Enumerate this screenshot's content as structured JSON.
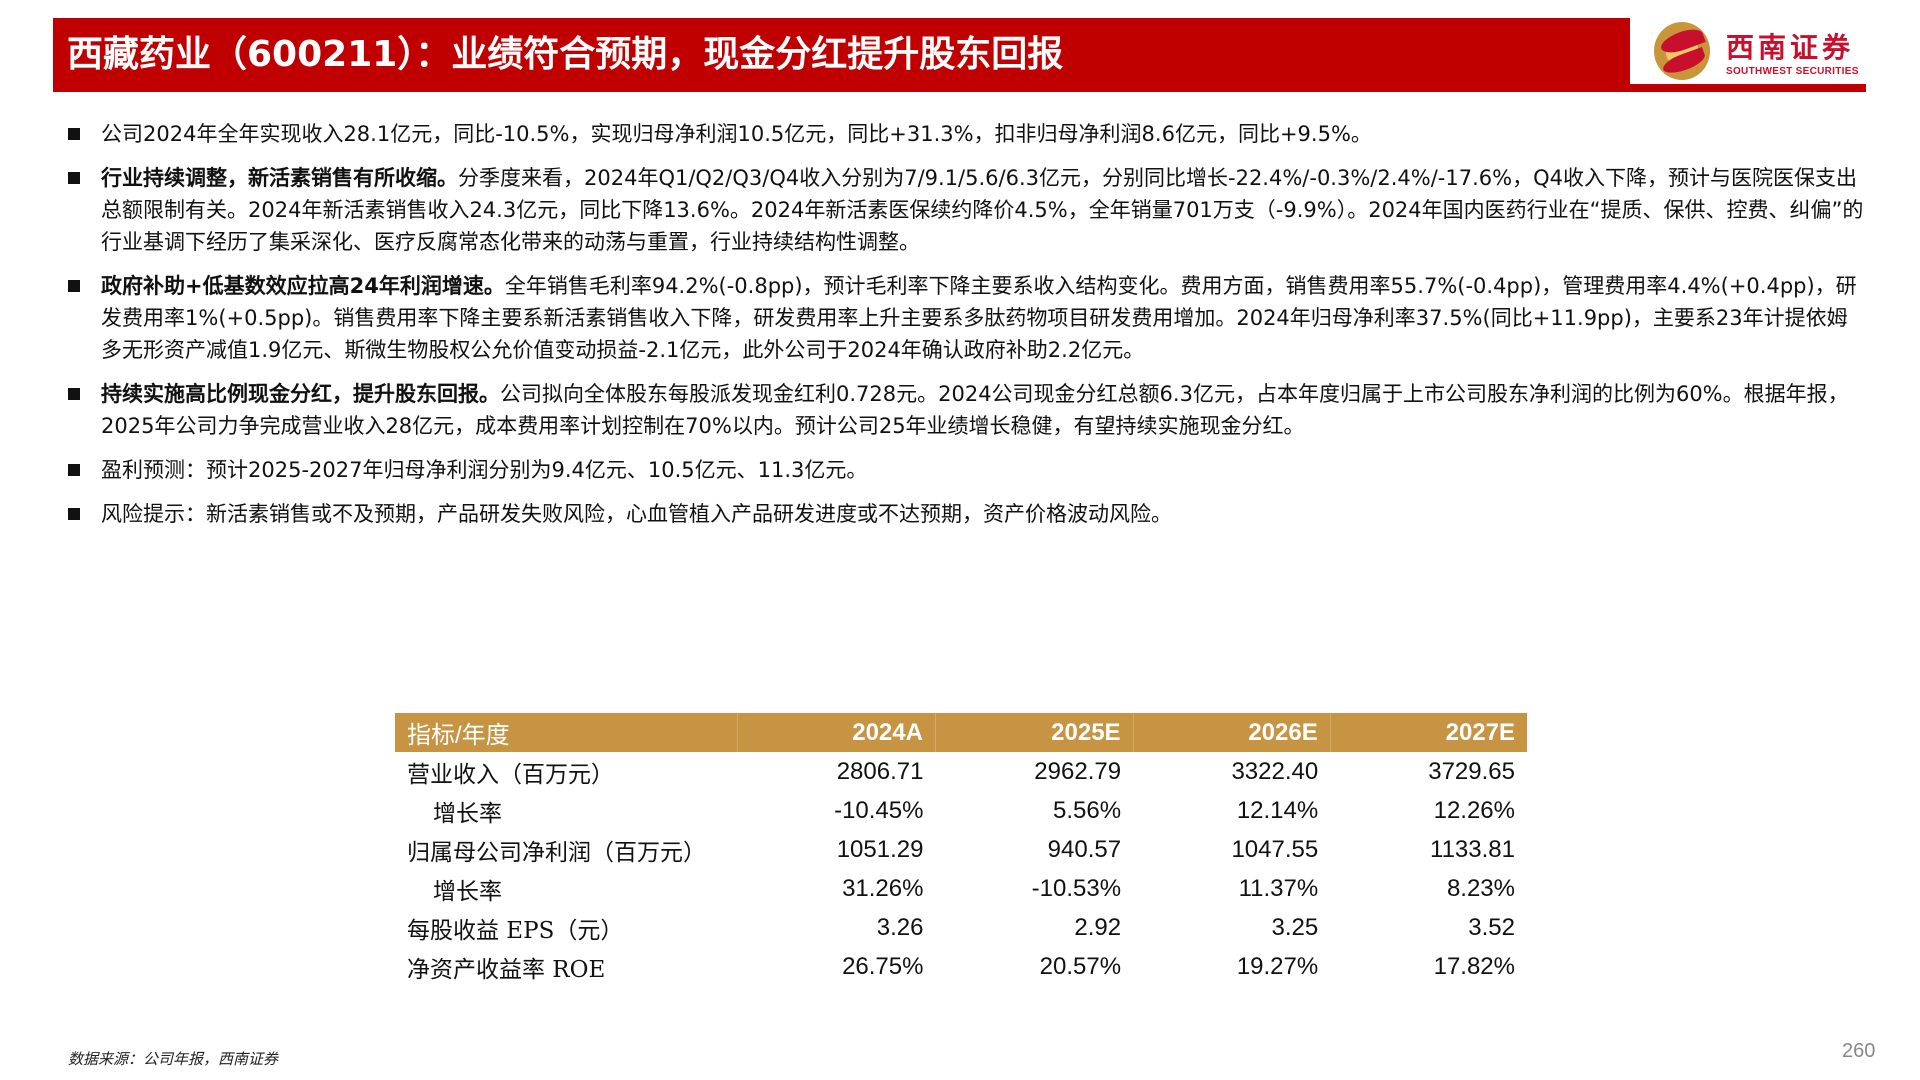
{
  "header": {
    "title": "西藏药业（600211）：业绩符合预期，现金分红提升股东回报",
    "title_bg": "#c00000",
    "logo": {
      "cn": "西南证券",
      "en": "SOUTHWEST SECURITIES",
      "icon": "southwest-securities-logo-icon"
    }
  },
  "bullets": [
    {
      "lead": "",
      "text": "公司2024年全年实现收入28.1亿元，同比-10.5%，实现归母净利润10.5亿元，同比+31.3%，扣非归母净利润8.6亿元，同比+9.5%。"
    },
    {
      "lead": "行业持续调整，新活素销售有所收缩。",
      "text": "分季度来看，2024年Q1/Q2/Q3/Q4收入分别为7/9.1/5.6/6.3亿元，分别同比增长-22.4%/-0.3%/2.4%/-17.6%，Q4收入下降，预计与医院医保支出总额限制有关。2024年新活素销售收入24.3亿元，同比下降13.6%。2024年新活素医保续约降价4.5%，全年销量701万支（-9.9%）。2024年国内医药行业在“提质、保供、控费、纠偏”的行业基调下经历了集采深化、医疗反腐常态化带来的动荡与重置，行业持续结构性调整。"
    },
    {
      "lead": "政府补助+低基数效应拉高24年利润增速。",
      "text": "全年销售毛利率94.2%(-0.8pp)，预计毛利率下降主要系收入结构变化。费用方面，销售费用率55.7%(-0.4pp)，管理费用率4.4%(+0.4pp)，研发费用率1%(+0.5pp)。销售费用率下降主要系新活素销售收入下降，研发费用率上升主要系多肽药物项目研发费用增加。2024年归母净利率37.5%(同比+11.9pp)，主要系23年计提依姆多无形资产减值1.9亿元、斯微生物股权公允价值变动损益-2.1亿元，此外公司于2024年确认政府补助2.2亿元。"
    },
    {
      "lead": "持续实施高比例现金分红，提升股东回报。",
      "text": "公司拟向全体股东每股派发现金红利0.728元。2024公司现金分红总额6.3亿元，占本年度归属于上市公司股东净利润的比例为60%。根据年报，2025年公司力争完成营业收入28亿元，成本费用率计划控制在70%以内。预计公司25年业绩增长稳健，有望持续实施现金分红。"
    },
    {
      "lead": "",
      "text": "盈利预测：预计2025-2027年归母净利润分别为9.4亿元、10.5亿元、11.3亿元。"
    },
    {
      "lead": "",
      "text": "风险提示：新活素销售或不及预期，产品研发失败风险，心血管植入产品研发进度或不达预期，资产价格波动风险。"
    }
  ],
  "table": {
    "header_bg": "#c69443",
    "columns": [
      "指标/年度",
      "2024A",
      "2025E",
      "2026E",
      "2027E"
    ],
    "rows": [
      {
        "label": "营业收入（百万元）",
        "indent": false,
        "values": [
          "2806.71",
          "2962.79",
          "3322.40",
          "3729.65"
        ]
      },
      {
        "label": "增长率",
        "indent": true,
        "values": [
          "-10.45%",
          "5.56%",
          "12.14%",
          "12.26%"
        ]
      },
      {
        "label": "归属母公司净利润（百万元）",
        "indent": false,
        "values": [
          "1051.29",
          "940.57",
          "1047.55",
          "1133.81"
        ]
      },
      {
        "label": "增长率",
        "indent": true,
        "values": [
          "31.26%",
          "-10.53%",
          "11.37%",
          "8.23%"
        ]
      },
      {
        "label": "每股收益 EPS（元）",
        "indent": false,
        "values": [
          "3.26",
          "2.92",
          "3.25",
          "3.52"
        ]
      },
      {
        "label": "净资产收益率 ROE",
        "indent": false,
        "values": [
          "26.75%",
          "20.57%",
          "19.27%",
          "17.82%"
        ]
      }
    ]
  },
  "footer": {
    "source": "数据来源：公司年报，西南证券",
    "page_number": "260"
  }
}
